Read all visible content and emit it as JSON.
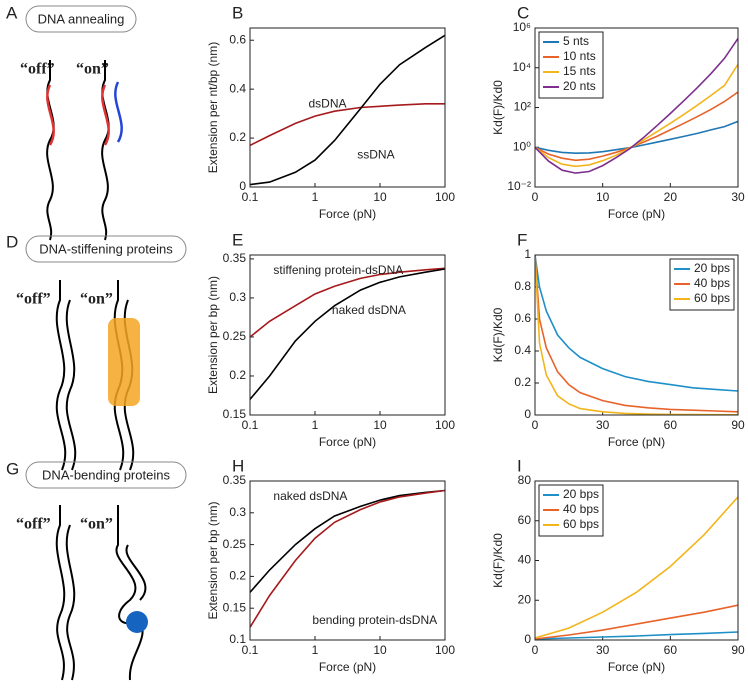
{
  "diagrams": [
    {
      "panel": "A",
      "title": "DNA annealing",
      "off": "“off”",
      "on": "“on”"
    },
    {
      "panel": "D",
      "title": "DNA-stiffening proteins",
      "off": "“off”",
      "on": "“on”"
    },
    {
      "panel": "G",
      "title": "DNA-bending proteins",
      "off": "“off”",
      "on": "“on”"
    }
  ],
  "chart_data": [
    {
      "type": "line",
      "panel": "B",
      "xlabel": "Force (pN)",
      "ylabel": "Extension per nt/bp (nm)",
      "xscale": "log",
      "legend": false,
      "x": [
        0.1,
        0.2,
        0.5,
        1,
        2,
        5,
        10,
        20,
        50,
        100
      ],
      "xlim": [
        0.1,
        100
      ],
      "xticks": [
        0.1,
        1,
        10,
        100
      ],
      "ylim": [
        0,
        0.65
      ],
      "yticks": [
        0,
        0.2,
        0.4,
        0.6
      ],
      "series": [
        {
          "name": "dsDNA",
          "color": "#a6191c",
          "values": [
            0.17,
            0.21,
            0.26,
            0.29,
            0.31,
            0.325,
            0.33,
            0.335,
            0.34,
            0.34
          ]
        },
        {
          "name": "ssDNA",
          "color": "#000000",
          "values": [
            0.01,
            0.02,
            0.06,
            0.11,
            0.19,
            0.32,
            0.42,
            0.5,
            0.57,
            0.62
          ]
        }
      ]
    },
    {
      "type": "line",
      "panel": "C",
      "xlabel": "Force (pN)",
      "ylabel": "Kd(F)/Kd0",
      "yscale": "log",
      "legend": "upper left",
      "x": [
        0,
        2,
        4,
        6,
        8,
        10,
        12,
        14,
        16,
        18,
        20,
        22,
        24,
        26,
        28,
        30
      ],
      "xlim": [
        0,
        30
      ],
      "xticks": [
        0,
        10,
        20,
        30
      ],
      "ylim": [
        0.01,
        1000000
      ],
      "yticks": [
        {
          "value": 0.01,
          "label": "10⁻²"
        },
        {
          "value": 1,
          "label": "10⁰"
        },
        {
          "value": 100,
          "label": "10²"
        },
        {
          "value": 10000,
          "label": "10⁴"
        },
        {
          "value": 1000000,
          "label": "10⁶"
        }
      ],
      "series": [
        {
          "name": "5 nts",
          "color": "#1f77b4",
          "values": [
            1,
            0.7,
            0.55,
            0.5,
            0.52,
            0.6,
            0.75,
            0.95,
            1.3,
            1.8,
            2.5,
            3.5,
            5,
            7.5,
            11,
            20
          ]
        },
        {
          "name": "10 nts",
          "color": "#e8632a",
          "values": [
            1,
            0.45,
            0.28,
            0.22,
            0.25,
            0.36,
            0.56,
            0.95,
            1.8,
            3.5,
            7.5,
            16,
            35,
            80,
            200,
            600
          ]
        },
        {
          "name": "15 nts",
          "color": "#f2b51c",
          "values": [
            1,
            0.3,
            0.14,
            0.11,
            0.13,
            0.21,
            0.4,
            0.9,
            2.3,
            6,
            16,
            45,
            130,
            400,
            1300,
            15000
          ]
        },
        {
          "name": "20 nts",
          "color": "#7e2f8e",
          "values": [
            1,
            0.2,
            0.07,
            0.05,
            0.06,
            0.12,
            0.3,
            0.85,
            3,
            12,
            50,
            220,
            1000,
            5000,
            30000,
            300000
          ]
        }
      ]
    },
    {
      "type": "line",
      "panel": "E",
      "xlabel": "Force (pN)",
      "ylabel": "Extension per bp (nm)",
      "xscale": "log",
      "legend": false,
      "x": [
        0.1,
        0.2,
        0.5,
        1,
        2,
        5,
        10,
        20,
        50,
        100
      ],
      "xlim": [
        0.1,
        100
      ],
      "xticks": [
        0.1,
        1,
        10,
        100
      ],
      "ylim": [
        0.15,
        0.355
      ],
      "yticks": [
        0.15,
        0.2,
        0.25,
        0.3,
        0.35
      ],
      "series": [
        {
          "name": "stiffening protein-dsDNA",
          "color": "#a6191c",
          "values": [
            0.25,
            0.27,
            0.29,
            0.305,
            0.315,
            0.325,
            0.33,
            0.333,
            0.336,
            0.338
          ]
        },
        {
          "name": "naked dsDNA",
          "color": "#000000",
          "values": [
            0.17,
            0.2,
            0.245,
            0.27,
            0.29,
            0.31,
            0.32,
            0.327,
            0.333,
            0.337
          ]
        }
      ]
    },
    {
      "type": "line",
      "panel": "F",
      "xlabel": "Force (pN)",
      "ylabel": "Kd(F)/Kd0",
      "legend": "upper right",
      "x": [
        0,
        2,
        5,
        10,
        15,
        20,
        30,
        40,
        50,
        60,
        70,
        80,
        90
      ],
      "xlim": [
        0,
        90
      ],
      "xticks": [
        0,
        30,
        60,
        90
      ],
      "ylim": [
        0,
        1
      ],
      "yticks": [
        0,
        0.2,
        0.4,
        0.6,
        0.8,
        1
      ],
      "series": [
        {
          "name": "20 bps",
          "color": "#1f8fc8",
          "values": [
            1,
            0.8,
            0.65,
            0.5,
            0.42,
            0.36,
            0.29,
            0.24,
            0.21,
            0.19,
            0.17,
            0.16,
            0.15
          ]
        },
        {
          "name": "40 bps",
          "color": "#e8632a",
          "values": [
            1,
            0.6,
            0.42,
            0.27,
            0.19,
            0.14,
            0.09,
            0.06,
            0.045,
            0.035,
            0.03,
            0.025,
            0.02
          ]
        },
        {
          "name": "60 bps",
          "color": "#f2b51c",
          "values": [
            1,
            0.45,
            0.25,
            0.12,
            0.07,
            0.04,
            0.02,
            0.01,
            0.006,
            0.004,
            0.003,
            0.002,
            0.001
          ]
        }
      ]
    },
    {
      "type": "line",
      "panel": "H",
      "xlabel": "Force (pN)",
      "ylabel": "Extension per bp (nm)",
      "xscale": "log",
      "legend": false,
      "x": [
        0.1,
        0.2,
        0.5,
        1,
        2,
        5,
        10,
        20,
        50,
        100
      ],
      "xlim": [
        0.1,
        100
      ],
      "xticks": [
        0.1,
        1,
        10,
        100
      ],
      "ylim": [
        0.1,
        0.35
      ],
      "yticks": [
        0.1,
        0.15,
        0.2,
        0.25,
        0.3,
        0.35
      ],
      "series": [
        {
          "name": "naked dsDNA",
          "color": "#000000",
          "values": [
            0.175,
            0.21,
            0.25,
            0.275,
            0.295,
            0.31,
            0.32,
            0.327,
            0.332,
            0.335
          ]
        },
        {
          "name": "bending protein-dsDNA",
          "color": "#a6191c",
          "values": [
            0.12,
            0.17,
            0.225,
            0.26,
            0.285,
            0.305,
            0.317,
            0.325,
            0.331,
            0.335
          ]
        }
      ]
    },
    {
      "type": "line",
      "panel": "I",
      "xlabel": "Force (pN)",
      "ylabel": "Kd(F)/Kd0",
      "legend": "upper left",
      "x": [
        0,
        15,
        30,
        45,
        60,
        75,
        90
      ],
      "xlim": [
        0,
        90
      ],
      "xticks": [
        0,
        30,
        60,
        90
      ],
      "ylim": [
        0,
        80
      ],
      "yticks": [
        0,
        20,
        40,
        60,
        80
      ],
      "series": [
        {
          "name": "20 bps",
          "color": "#1f8fc8",
          "values": [
            0.5,
            1,
            1.5,
            2,
            2.7,
            3.3,
            4
          ]
        },
        {
          "name": "40 bps",
          "color": "#e8632a",
          "values": [
            0.5,
            2.5,
            5,
            8,
            11,
            14,
            17.5
          ]
        },
        {
          "name": "60 bps",
          "color": "#f2b51c",
          "values": [
            1,
            6,
            14,
            24,
            37,
            53,
            72
          ]
        }
      ]
    }
  ]
}
